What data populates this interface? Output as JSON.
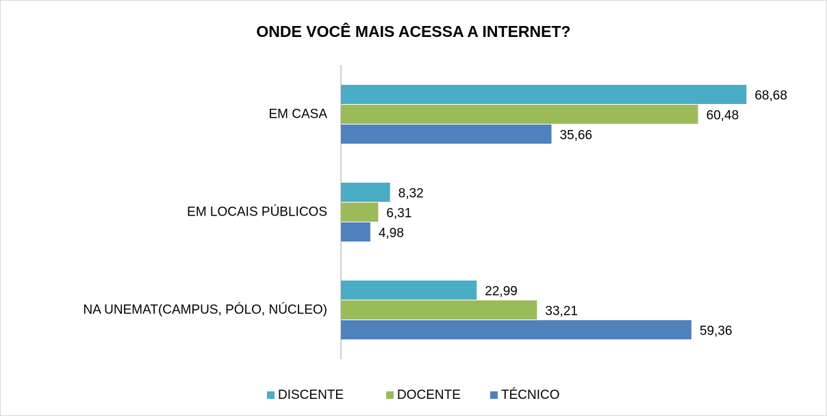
{
  "chart_data": {
    "type": "bar",
    "orientation": "horizontal",
    "title": "ONDE VOCÊ MAIS ACESSA A INTERNET?",
    "categories": [
      "EM CASA",
      "EM LOCAIS PÚBLICOS",
      "NA UNEMAT(CAMPUS, PÓLO, NÚCLEO)"
    ],
    "series": [
      {
        "name": "DISCENTE",
        "color": "#4bacc6",
        "values": [
          68.68,
          8.32,
          22.99
        ],
        "value_labels": [
          "68,68",
          "8,32",
          "22,99"
        ]
      },
      {
        "name": "DOCENTE",
        "color": "#9bbb59",
        "values": [
          60.48,
          6.31,
          33.21
        ],
        "value_labels": [
          "60,48",
          "6,31",
          "33,21"
        ]
      },
      {
        "name": "TÉCNICO",
        "color": "#4f81bd",
        "values": [
          35.66,
          4.98,
          59.36
        ],
        "value_labels": [
          "35,66",
          "4,98",
          "59,36"
        ]
      }
    ],
    "xlim": [
      0,
      80
    ],
    "legend": "bottom"
  }
}
